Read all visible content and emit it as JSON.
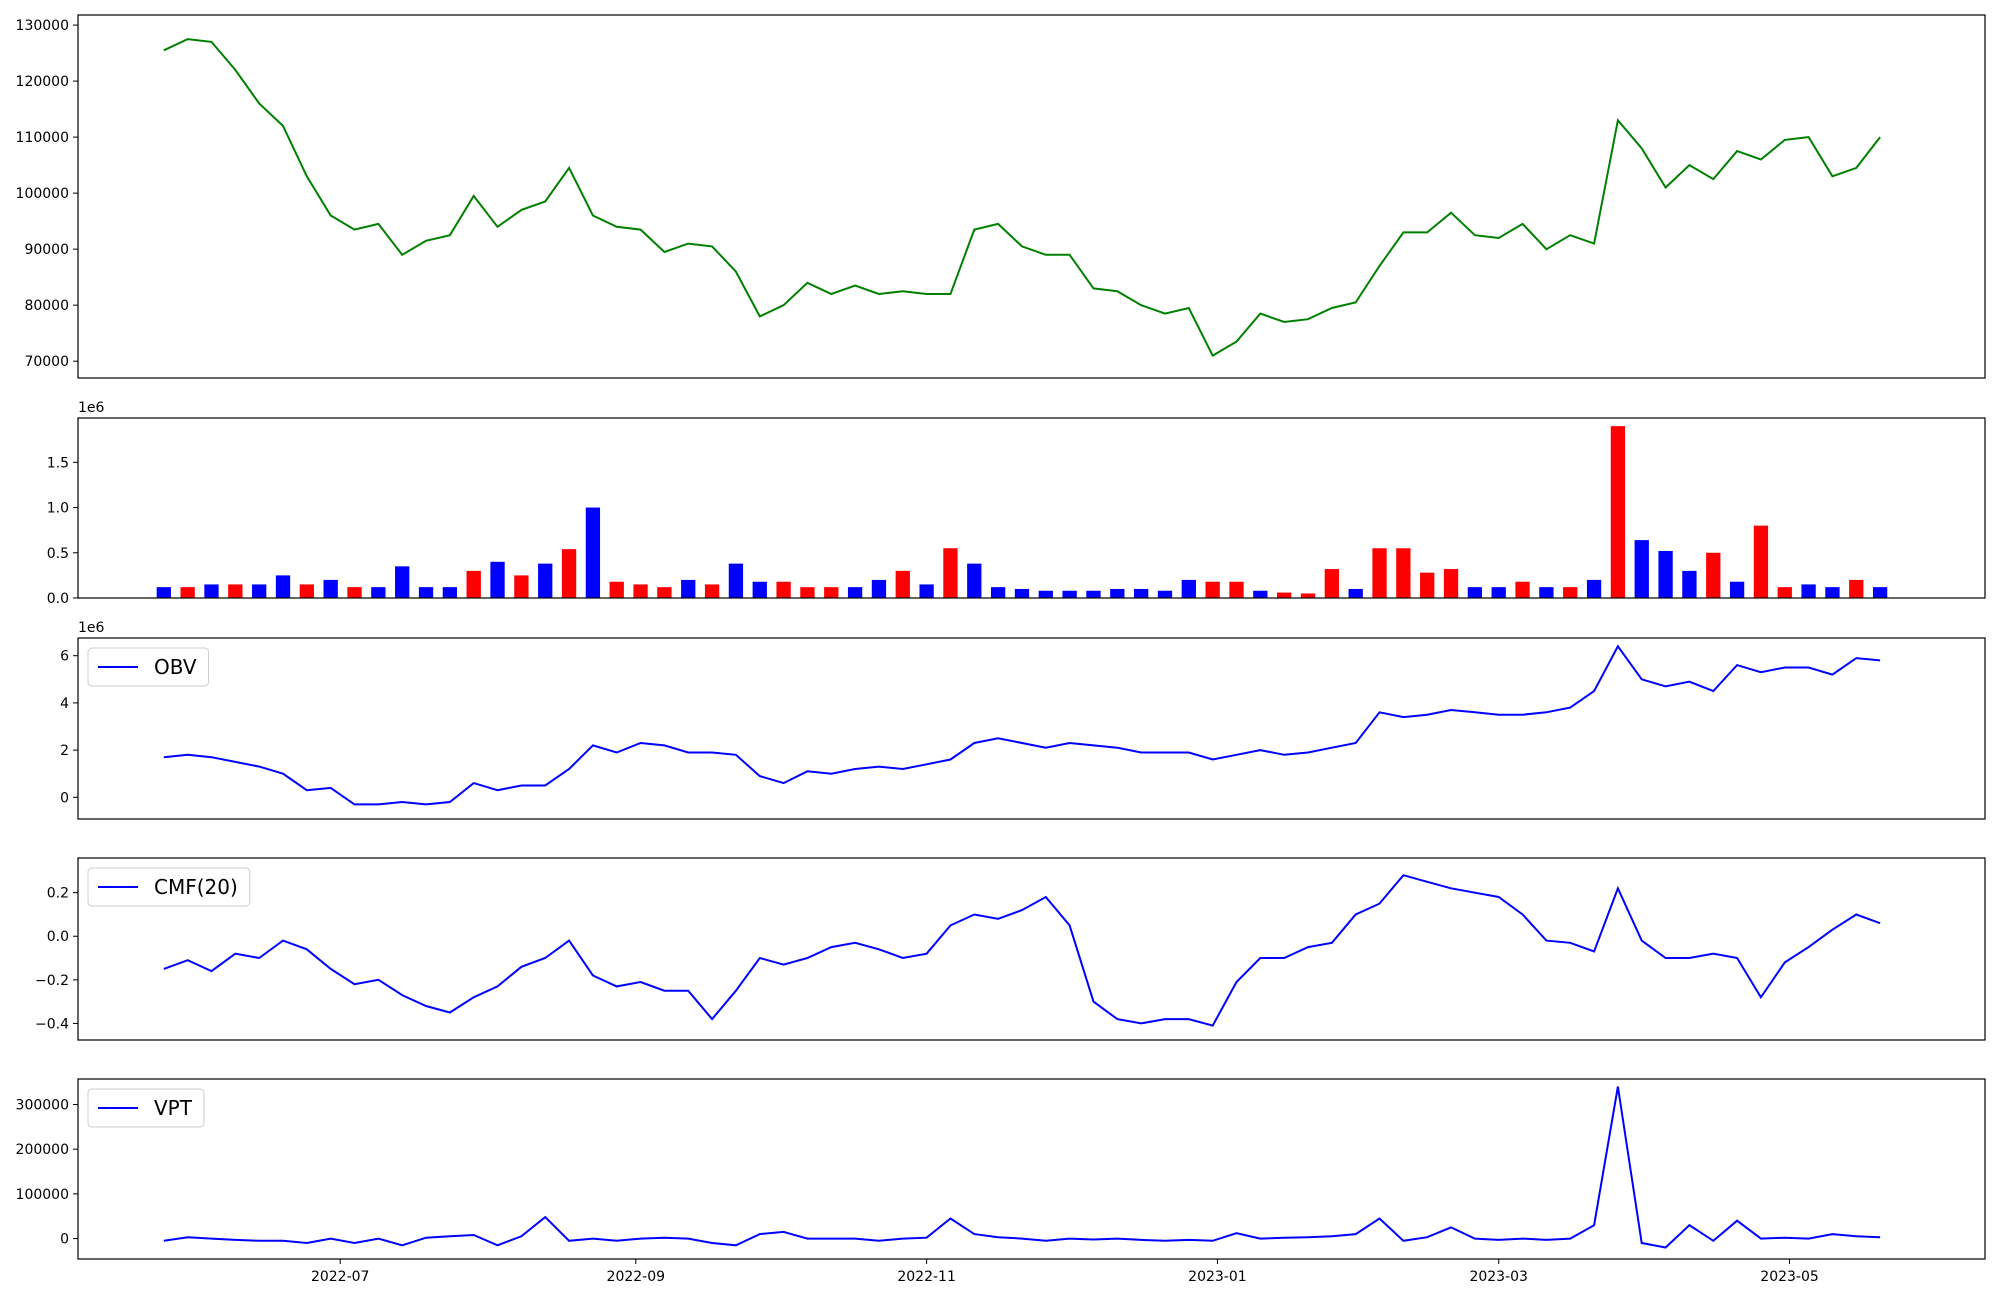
{
  "chart_data": [
    {
      "type": "line",
      "color": "#008000",
      "x": [
        "2022-05-25",
        "2022-05-30",
        "2022-06-04",
        "2022-06-09",
        "2022-06-14",
        "2022-06-19",
        "2022-06-24",
        "2022-06-29",
        "2022-07-04",
        "2022-07-09",
        "2022-07-14",
        "2022-07-19",
        "2022-07-24",
        "2022-07-29",
        "2022-08-03",
        "2022-08-08",
        "2022-08-13",
        "2022-08-18",
        "2022-08-23",
        "2022-08-28",
        "2022-09-02",
        "2022-09-07",
        "2022-09-12",
        "2022-09-17",
        "2022-09-22",
        "2022-09-27",
        "2022-10-02",
        "2022-10-07",
        "2022-10-12",
        "2022-10-17",
        "2022-10-22",
        "2022-10-27",
        "2022-11-01",
        "2022-11-06",
        "2022-11-11",
        "2022-11-16",
        "2022-11-21",
        "2022-11-26",
        "2022-12-01",
        "2022-12-06",
        "2022-12-11",
        "2022-12-16",
        "2022-12-21",
        "2022-12-26",
        "2022-12-31",
        "2023-01-05",
        "2023-01-10",
        "2023-01-15",
        "2023-01-20",
        "2023-01-25",
        "2023-01-30",
        "2023-02-04",
        "2023-02-09",
        "2023-02-14",
        "2023-02-19",
        "2023-02-24",
        "2023-03-01",
        "2023-03-06",
        "2023-03-11",
        "2023-03-16",
        "2023-03-21",
        "2023-03-26",
        "2023-03-31",
        "2023-04-05",
        "2023-04-10",
        "2023-04-15",
        "2023-04-20",
        "2023-04-25",
        "2023-04-30",
        "2023-05-05",
        "2023-05-10",
        "2023-05-15",
        "2023-05-20"
      ],
      "values": [
        125500,
        127500,
        127000,
        122000,
        116000,
        112000,
        103000,
        96000,
        93500,
        94500,
        89000,
        91500,
        92500,
        99500,
        94000,
        97000,
        98500,
        104500,
        96000,
        94000,
        93500,
        89500,
        91000,
        90500,
        86000,
        78000,
        80000,
        84000,
        82000,
        83500,
        82000,
        82500,
        82000,
        82000,
        93500,
        94500,
        90500,
        89000,
        89000,
        83000,
        82500,
        80000,
        78500,
        79500,
        71000,
        73500,
        78500,
        77000,
        77500,
        79500,
        80500,
        87000,
        93000,
        93000,
        96500,
        92500,
        92000,
        94500,
        90000,
        92500,
        91000,
        113000,
        108000,
        101000,
        105000,
        102500,
        107500,
        106000,
        109500,
        110000,
        103000,
        104500,
        110000
      ],
      "xlim": [
        "2022-05-07",
        "2023-06-11"
      ],
      "ylim": [
        67000,
        131800
      ],
      "yticks": [
        70000,
        80000,
        90000,
        100000,
        110000,
        120000,
        130000
      ]
    },
    {
      "type": "bar",
      "y_offset_label": "1e6",
      "x": [
        "2022-05-25",
        "2022-05-30",
        "2022-06-04",
        "2022-06-09",
        "2022-06-14",
        "2022-06-19",
        "2022-06-24",
        "2022-06-29",
        "2022-07-04",
        "2022-07-09",
        "2022-07-14",
        "2022-07-19",
        "2022-07-24",
        "2022-07-29",
        "2022-08-03",
        "2022-08-08",
        "2022-08-13",
        "2022-08-18",
        "2022-08-23",
        "2022-08-28",
        "2022-09-02",
        "2022-09-07",
        "2022-09-12",
        "2022-09-17",
        "2022-09-22",
        "2022-09-27",
        "2022-10-02",
        "2022-10-07",
        "2022-10-12",
        "2022-10-17",
        "2022-10-22",
        "2022-10-27",
        "2022-11-01",
        "2022-11-06",
        "2022-11-11",
        "2022-11-16",
        "2022-11-21",
        "2022-11-26",
        "2022-12-01",
        "2022-12-06",
        "2022-12-11",
        "2022-12-16",
        "2022-12-21",
        "2022-12-26",
        "2022-12-31",
        "2023-01-05",
        "2023-01-10",
        "2023-01-15",
        "2023-01-20",
        "2023-01-25",
        "2023-01-30",
        "2023-02-04",
        "2023-02-09",
        "2023-02-14",
        "2023-02-19",
        "2023-02-24",
        "2023-03-01",
        "2023-03-06",
        "2023-03-11",
        "2023-03-16",
        "2023-03-21",
        "2023-03-26",
        "2023-03-31",
        "2023-04-05",
        "2023-04-10",
        "2023-04-15",
        "2023-04-20",
        "2023-04-25",
        "2023-04-30",
        "2023-05-05",
        "2023-05-10",
        "2023-05-15",
        "2023-05-20"
      ],
      "values": [
        0.12,
        0.12,
        0.15,
        0.15,
        0.15,
        0.25,
        0.15,
        0.2,
        0.12,
        0.12,
        0.35,
        0.12,
        0.12,
        0.3,
        0.4,
        0.25,
        0.38,
        0.54,
        1.0,
        0.18,
        0.15,
        0.12,
        0.2,
        0.15,
        0.38,
        0.18,
        0.18,
        0.12,
        0.12,
        0.12,
        0.2,
        0.3,
        0.15,
        0.55,
        0.38,
        0.12,
        0.1,
        0.08,
        0.08,
        0.08,
        0.1,
        0.1,
        0.08,
        0.2,
        0.18,
        0.18,
        0.08,
        0.06,
        0.05,
        0.32,
        0.1,
        0.55,
        0.55,
        0.28,
        0.32,
        0.12,
        0.12,
        0.18,
        0.12,
        0.12,
        0.2,
        1.9,
        0.64,
        0.52,
        0.3,
        0.5,
        0.18,
        0.8,
        0.12,
        0.15,
        0.12,
        0.2,
        0.12
      ],
      "colors": [
        "#0000ff",
        "#ff0000",
        "#0000ff",
        "#ff0000",
        "#0000ff",
        "#0000ff",
        "#ff0000",
        "#0000ff",
        "#ff0000",
        "#0000ff",
        "#0000ff",
        "#0000ff",
        "#0000ff",
        "#ff0000",
        "#0000ff",
        "#ff0000",
        "#0000ff",
        "#ff0000",
        "#0000ff",
        "#ff0000",
        "#ff0000",
        "#ff0000",
        "#0000ff",
        "#ff0000",
        "#0000ff",
        "#0000ff",
        "#ff0000",
        "#ff0000",
        "#ff0000",
        "#0000ff",
        "#0000ff",
        "#ff0000",
        "#0000ff",
        "#ff0000",
        "#0000ff",
        "#0000ff",
        "#0000ff",
        "#0000ff",
        "#0000ff",
        "#0000ff",
        "#0000ff",
        "#0000ff",
        "#0000ff",
        "#0000ff",
        "#ff0000",
        "#ff0000",
        "#0000ff",
        "#ff0000",
        "#ff0000",
        "#ff0000",
        "#0000ff",
        "#ff0000",
        "#ff0000",
        "#ff0000",
        "#ff0000",
        "#0000ff",
        "#0000ff",
        "#ff0000",
        "#0000ff",
        "#ff0000",
        "#0000ff",
        "#ff0000",
        "#0000ff",
        "#0000ff",
        "#0000ff",
        "#ff0000",
        "#0000ff",
        "#ff0000",
        "#ff0000",
        "#0000ff",
        "#0000ff",
        "#ff0000",
        "#0000ff"
      ],
      "xlim": [
        "2022-05-07",
        "2023-06-11"
      ],
      "ylim": [
        0,
        1.99
      ],
      "yticks": [
        {
          "value": 0,
          "label": "0.0"
        },
        0.5,
        {
          "value": 1,
          "label": "1.0"
        },
        1.5
      ]
    },
    {
      "type": "line",
      "y_offset_label": "1e6",
      "legend": "upper left",
      "x": [
        "2022-05-25",
        "2022-05-30",
        "2022-06-04",
        "2022-06-09",
        "2022-06-14",
        "2022-06-19",
        "2022-06-24",
        "2022-06-29",
        "2022-07-04",
        "2022-07-09",
        "2022-07-14",
        "2022-07-19",
        "2022-07-24",
        "2022-07-29",
        "2022-08-03",
        "2022-08-08",
        "2022-08-13",
        "2022-08-18",
        "2022-08-23",
        "2022-08-28",
        "2022-09-02",
        "2022-09-07",
        "2022-09-12",
        "2022-09-17",
        "2022-09-22",
        "2022-09-27",
        "2022-10-02",
        "2022-10-07",
        "2022-10-12",
        "2022-10-17",
        "2022-10-22",
        "2022-10-27",
        "2022-11-01",
        "2022-11-06",
        "2022-11-11",
        "2022-11-16",
        "2022-11-21",
        "2022-11-26",
        "2022-12-01",
        "2022-12-06",
        "2022-12-11",
        "2022-12-16",
        "2022-12-21",
        "2022-12-26",
        "2022-12-31",
        "2023-01-05",
        "2023-01-10",
        "2023-01-15",
        "2023-01-20",
        "2023-01-25",
        "2023-01-30",
        "2023-02-04",
        "2023-02-09",
        "2023-02-14",
        "2023-02-19",
        "2023-02-24",
        "2023-03-01",
        "2023-03-06",
        "2023-03-11",
        "2023-03-16",
        "2023-03-21",
        "2023-03-26",
        "2023-03-31",
        "2023-04-05",
        "2023-04-10",
        "2023-04-15",
        "2023-04-20",
        "2023-04-25",
        "2023-04-30",
        "2023-05-05",
        "2023-05-10",
        "2023-05-15",
        "2023-05-20"
      ],
      "series": [
        {
          "name": "OBV",
          "color": "#0000ff",
          "values": [
            1.7,
            1.8,
            1.7,
            1.5,
            1.3,
            1.0,
            0.3,
            0.4,
            -0.3,
            -0.3,
            -0.2,
            -0.3,
            -0.2,
            0.6,
            0.3,
            0.5,
            0.5,
            1.2,
            2.2,
            1.9,
            2.3,
            2.2,
            1.9,
            1.9,
            1.8,
            0.9,
            0.6,
            1.1,
            1.0,
            1.2,
            1.3,
            1.2,
            1.4,
            1.6,
            2.3,
            2.5,
            2.3,
            2.1,
            2.3,
            2.2,
            2.1,
            1.9,
            1.9,
            1.9,
            1.6,
            1.8,
            2.0,
            1.8,
            1.9,
            2.1,
            2.3,
            3.6,
            3.4,
            3.5,
            3.7,
            3.6,
            3.5,
            3.5,
            3.6,
            3.8,
            4.5,
            6.4,
            5.0,
            4.7,
            4.9,
            4.5,
            5.6,
            5.3,
            5.5,
            5.5,
            5.2,
            5.9,
            5.8
          ]
        }
      ],
      "xlim": [
        "2022-05-07",
        "2023-06-11"
      ],
      "ylim": [
        -0.92,
        6.75
      ],
      "yticks": [
        0,
        2,
        4,
        6
      ]
    },
    {
      "type": "line",
      "legend": "upper left",
      "x": [
        "2022-05-25",
        "2022-05-30",
        "2022-06-04",
        "2022-06-09",
        "2022-06-14",
        "2022-06-19",
        "2022-06-24",
        "2022-06-29",
        "2022-07-04",
        "2022-07-09",
        "2022-07-14",
        "2022-07-19",
        "2022-07-24",
        "2022-07-29",
        "2022-08-03",
        "2022-08-08",
        "2022-08-13",
        "2022-08-18",
        "2022-08-23",
        "2022-08-28",
        "2022-09-02",
        "2022-09-07",
        "2022-09-12",
        "2022-09-17",
        "2022-09-22",
        "2022-09-27",
        "2022-10-02",
        "2022-10-07",
        "2022-10-12",
        "2022-10-17",
        "2022-10-22",
        "2022-10-27",
        "2022-11-01",
        "2022-11-06",
        "2022-11-11",
        "2022-11-16",
        "2022-11-21",
        "2022-11-26",
        "2022-12-01",
        "2022-12-06",
        "2022-12-11",
        "2022-12-16",
        "2022-12-21",
        "2022-12-26",
        "2022-12-31",
        "2023-01-05",
        "2023-01-10",
        "2023-01-15",
        "2023-01-20",
        "2023-01-25",
        "2023-01-30",
        "2023-02-04",
        "2023-02-09",
        "2023-02-14",
        "2023-02-19",
        "2023-02-24",
        "2023-03-01",
        "2023-03-06",
        "2023-03-11",
        "2023-03-16",
        "2023-03-21",
        "2023-03-26",
        "2023-03-31",
        "2023-04-05",
        "2023-04-10",
        "2023-04-15",
        "2023-04-20",
        "2023-04-25",
        "2023-04-30",
        "2023-05-05",
        "2023-05-10",
        "2023-05-15",
        "2023-05-20"
      ],
      "series": [
        {
          "name": "CMF(20)",
          "color": "#0000ff",
          "values": [
            -0.15,
            -0.11,
            -0.16,
            -0.08,
            -0.1,
            -0.02,
            -0.06,
            -0.15,
            -0.22,
            -0.2,
            -0.27,
            -0.32,
            -0.35,
            -0.28,
            -0.23,
            -0.14,
            -0.1,
            -0.02,
            -0.18,
            -0.23,
            -0.21,
            -0.25,
            -0.25,
            -0.38,
            -0.25,
            -0.1,
            -0.13,
            -0.1,
            -0.05,
            -0.03,
            -0.06,
            -0.1,
            -0.08,
            0.05,
            0.1,
            0.08,
            0.12,
            0.18,
            0.05,
            -0.3,
            -0.38,
            -0.4,
            -0.38,
            -0.38,
            -0.41,
            -0.21,
            -0.1,
            -0.1,
            -0.05,
            -0.03,
            0.1,
            0.15,
            0.28,
            0.25,
            0.22,
            0.2,
            0.18,
            0.1,
            -0.02,
            -0.03,
            -0.07,
            0.22,
            -0.02,
            -0.1,
            -0.1,
            -0.08,
            -0.1,
            -0.28,
            -0.12,
            -0.05,
            0.03,
            0.1,
            0.06
          ]
        }
      ],
      "xlim": [
        "2022-05-07",
        "2023-06-11"
      ],
      "ylim": [
        -0.476,
        0.359
      ],
      "yticks": [
        {
          "value": -0.4,
          "label": "−0.4"
        },
        {
          "value": -0.2,
          "label": "−0.2"
        },
        {
          "value": 0,
          "label": "0.0"
        },
        0.2
      ]
    },
    {
      "type": "line",
      "legend": "upper left",
      "x": [
        "2022-05-25",
        "2022-05-30",
        "2022-06-04",
        "2022-06-09",
        "2022-06-14",
        "2022-06-19",
        "2022-06-24",
        "2022-06-29",
        "2022-07-04",
        "2022-07-09",
        "2022-07-14",
        "2022-07-19",
        "2022-07-24",
        "2022-07-29",
        "2022-08-03",
        "2022-08-08",
        "2022-08-13",
        "2022-08-18",
        "2022-08-23",
        "2022-08-28",
        "2022-09-02",
        "2022-09-07",
        "2022-09-12",
        "2022-09-17",
        "2022-09-22",
        "2022-09-27",
        "2022-10-02",
        "2022-10-07",
        "2022-10-12",
        "2022-10-17",
        "2022-10-22",
        "2022-10-27",
        "2022-11-01",
        "2022-11-06",
        "2022-11-11",
        "2022-11-16",
        "2022-11-21",
        "2022-11-26",
        "2022-12-01",
        "2022-12-06",
        "2022-12-11",
        "2022-12-16",
        "2022-12-21",
        "2022-12-26",
        "2022-12-31",
        "2023-01-05",
        "2023-01-10",
        "2023-01-15",
        "2023-01-20",
        "2023-01-25",
        "2023-01-30",
        "2023-02-04",
        "2023-02-09",
        "2023-02-14",
        "2023-02-19",
        "2023-02-24",
        "2023-03-01",
        "2023-03-06",
        "2023-03-11",
        "2023-03-16",
        "2023-03-21",
        "2023-03-26",
        "2023-03-31",
        "2023-04-05",
        "2023-04-10",
        "2023-04-15",
        "2023-04-20",
        "2023-04-25",
        "2023-04-30",
        "2023-05-05",
        "2023-05-10",
        "2023-05-15",
        "2023-05-20"
      ],
      "series": [
        {
          "name": "VPT",
          "color": "#0000ff",
          "values": [
            -5000,
            3000,
            0,
            -3000,
            -5000,
            -5000,
            -10000,
            0,
            -10000,
            0,
            -15000,
            2000,
            5000,
            8000,
            -15000,
            5000,
            48000,
            -5000,
            0,
            -5000,
            0,
            2000,
            0,
            -10000,
            -15000,
            10000,
            15000,
            0,
            0,
            0,
            -5000,
            0,
            2000,
            45000,
            10000,
            3000,
            0,
            -5000,
            0,
            -2000,
            0,
            -3000,
            -5000,
            -3000,
            -5000,
            12000,
            0,
            2000,
            3000,
            5000,
            10000,
            45000,
            -5000,
            3000,
            25000,
            0,
            -3000,
            0,
            -3000,
            0,
            30000,
            340000,
            -10000,
            -20000,
            30000,
            -5000,
            40000,
            0,
            2000,
            0,
            10000,
            5000,
            3000
          ]
        }
      ],
      "xlim": [
        "2022-05-07",
        "2023-06-11"
      ],
      "ylim": [
        -45700,
        357000
      ],
      "yticks": [
        0,
        100000,
        200000,
        300000
      ],
      "xticks": [
        {
          "value": "2022-07-01",
          "label": "2022-07"
        },
        {
          "value": "2022-09-01",
          "label": "2022-09"
        },
        {
          "value": "2022-11-01",
          "label": "2022-11"
        },
        {
          "value": "2023-01-01",
          "label": "2023-01"
        },
        {
          "value": "2023-03-01",
          "label": "2023-03"
        },
        {
          "value": "2023-05-01",
          "label": "2023-05"
        }
      ]
    }
  ]
}
